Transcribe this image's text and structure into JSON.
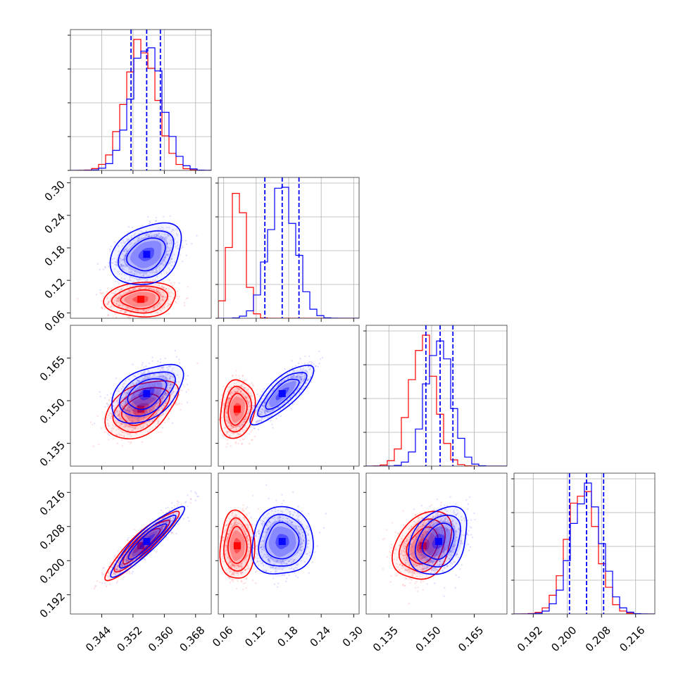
{
  "chart_data": {
    "type": "corner",
    "title": "",
    "grid": true,
    "parameters": [
      {
        "range": [
          0.336,
          0.372
        ],
        "ticks": [
          "0.344",
          "0.352",
          "0.360",
          "0.368"
        ]
      },
      {
        "range": [
          0.05,
          0.31
        ],
        "ticks": [
          "0.06",
          "0.12",
          "0.18",
          "0.24",
          "0.30"
        ]
      },
      {
        "range": [
          0.127,
          0.1765
        ],
        "ticks": [
          "0.135",
          "0.150",
          "0.165"
        ]
      },
      {
        "range": [
          0.1875,
          0.2205
        ],
        "ticks": [
          "0.192",
          "0.200",
          "0.208",
          "0.216"
        ]
      }
    ],
    "series": [
      {
        "color": "#0000ff",
        "means": [
          0.3555,
          0.168,
          0.1525,
          0.2045
        ],
        "sds": [
          0.004,
          0.025,
          0.0045,
          0.0035
        ],
        "quantiles": [
          [
            0.3515,
            0.3555,
            0.359
          ],
          [
            0.136,
            0.168,
            0.199
          ],
          [
            0.148,
            0.153,
            0.1575
          ],
          [
            0.2005,
            0.2045,
            0.2085
          ]
        ],
        "correlations": [
          [
            0,
            1,
            0.3
          ],
          [
            0,
            2,
            0.45
          ],
          [
            0,
            3,
            0.92
          ],
          [
            1,
            2,
            0.8
          ],
          [
            1,
            3,
            0.05
          ],
          [
            2,
            3,
            0.3
          ]
        ]
      },
      {
        "color": "#ff0000",
        "means": [
          0.354,
          0.085,
          0.147,
          0.2035
        ],
        "sds": [
          0.004,
          0.014,
          0.0045,
          0.0035
        ],
        "quantiles": [],
        "correlations": [
          [
            0,
            1,
            0.1
          ],
          [
            0,
            2,
            0.45
          ],
          [
            0,
            3,
            0.92
          ],
          [
            1,
            2,
            0.15
          ],
          [
            1,
            3,
            0.0
          ],
          [
            2,
            3,
            0.3
          ]
        ]
      }
    ]
  }
}
